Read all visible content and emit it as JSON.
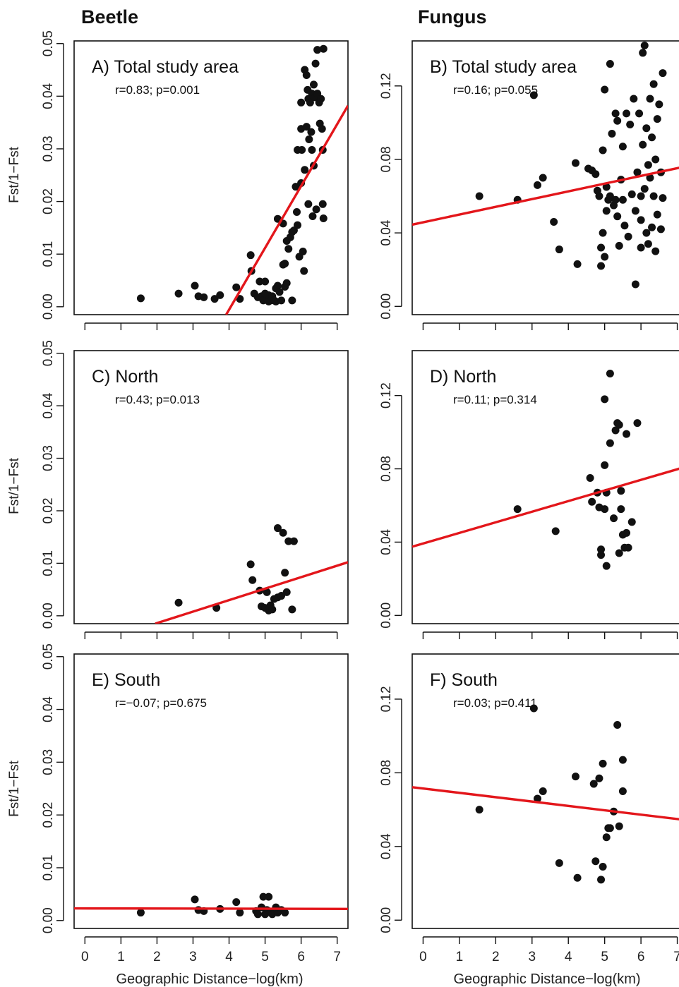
{
  "column_titles": {
    "beetle": "Beetle",
    "fungus": "Fungus"
  },
  "y_axis_label": "Fst/1−Fst",
  "x_axis_label": "Geographic Distance−log(km)",
  "colors": {
    "fit_line": "#e3161b",
    "points": "#111111"
  },
  "chart_data": [
    {
      "id": "A",
      "type": "scatter",
      "title": "A) Total study area",
      "annotation": "r=0.83; p=0.001",
      "xlim": [
        -0.3,
        7.3
      ],
      "ylim": [
        -0.0015,
        0.0505
      ],
      "yticks": [
        "0.00",
        "0.01",
        "0.02",
        "0.03",
        "0.04",
        "0.05"
      ],
      "xticks": [
        0,
        1,
        2,
        3,
        4,
        5,
        6,
        7
      ],
      "fit": {
        "x1": 3.92,
        "y1": -0.0015,
        "x2": 7.3,
        "y2": 0.0382
      },
      "points": [
        [
          1.55,
          0.0016
        ],
        [
          2.6,
          0.0025
        ],
        [
          3.05,
          0.004
        ],
        [
          3.15,
          0.002
        ],
        [
          3.3,
          0.0018
        ],
        [
          3.6,
          0.0015
        ],
        [
          3.75,
          0.0022
        ],
        [
          4.2,
          0.0037
        ],
        [
          4.3,
          0.0015
        ],
        [
          4.6,
          0.0098
        ],
        [
          4.62,
          0.0068
        ],
        [
          4.7,
          0.0025
        ],
        [
          4.8,
          0.0018
        ],
        [
          4.85,
          0.0048
        ],
        [
          4.9,
          0.002
        ],
        [
          4.95,
          0.0012
        ],
        [
          5.0,
          0.0048
        ],
        [
          5.0,
          0.0025
        ],
        [
          5.05,
          0.0015
        ],
        [
          5.1,
          0.0022
        ],
        [
          5.1,
          0.001
        ],
        [
          5.15,
          0.0012
        ],
        [
          5.2,
          0.002
        ],
        [
          5.25,
          0.0012
        ],
        [
          5.3,
          0.0035
        ],
        [
          5.3,
          0.001
        ],
        [
          5.35,
          0.0167
        ],
        [
          5.35,
          0.004
        ],
        [
          5.4,
          0.0028
        ],
        [
          5.45,
          0.0012
        ],
        [
          5.5,
          0.0158
        ],
        [
          5.5,
          0.008
        ],
        [
          5.55,
          0.0082
        ],
        [
          5.55,
          0.0038
        ],
        [
          5.6,
          0.0045
        ],
        [
          5.6,
          0.0125
        ],
        [
          5.65,
          0.011
        ],
        [
          5.7,
          0.0132
        ],
        [
          5.75,
          0.0012
        ],
        [
          5.75,
          0.0142
        ],
        [
          5.8,
          0.0145
        ],
        [
          5.85,
          0.0228
        ],
        [
          5.88,
          0.018
        ],
        [
          5.9,
          0.0155
        ],
        [
          5.9,
          0.0298
        ],
        [
          5.95,
          0.0095
        ],
        [
          6.0,
          0.0338
        ],
        [
          6.0,
          0.0388
        ],
        [
          6.0,
          0.0235
        ],
        [
          6.02,
          0.0298
        ],
        [
          6.05,
          0.0105
        ],
        [
          6.08,
          0.0068
        ],
        [
          6.1,
          0.045
        ],
        [
          6.1,
          0.026
        ],
        [
          6.15,
          0.044
        ],
        [
          6.15,
          0.0342
        ],
        [
          6.18,
          0.0412
        ],
        [
          6.2,
          0.0395
        ],
        [
          6.2,
          0.0195
        ],
        [
          6.22,
          0.0318
        ],
        [
          6.25,
          0.0388
        ],
        [
          6.28,
          0.0332
        ],
        [
          6.3,
          0.0405
        ],
        [
          6.3,
          0.0298
        ],
        [
          6.32,
          0.0172
        ],
        [
          6.35,
          0.0268
        ],
        [
          6.35,
          0.0422
        ],
        [
          6.38,
          0.0398
        ],
        [
          6.4,
          0.0462
        ],
        [
          6.42,
          0.0185
        ],
        [
          6.45,
          0.0405
        ],
        [
          6.45,
          0.0488
        ],
        [
          6.5,
          0.0388
        ],
        [
          6.52,
          0.0348
        ],
        [
          6.55,
          0.0395
        ],
        [
          6.58,
          0.0338
        ],
        [
          6.6,
          0.0195
        ],
        [
          6.6,
          0.0298
        ],
        [
          6.62,
          0.049
        ],
        [
          6.62,
          0.0168
        ]
      ]
    },
    {
      "id": "B",
      "type": "scatter",
      "title": "B) Total study area",
      "annotation": "r=0.16; p=0.055",
      "xlim": [
        -0.3,
        7.3
      ],
      "ylim": [
        -0.0045,
        0.1445
      ],
      "yticks": [
        "0.00",
        "0.04",
        "0.08",
        "0.12"
      ],
      "ytick_values": [
        0,
        0.04,
        0.08,
        0.12
      ],
      "xticks": [
        0,
        1,
        2,
        3,
        4,
        5,
        6,
        7
      ],
      "fit": {
        "x1": -0.3,
        "y1": 0.0445,
        "x2": 7.3,
        "y2": 0.0765
      },
      "points": [
        [
          1.55,
          0.06
        ],
        [
          2.6,
          0.058
        ],
        [
          3.05,
          0.115
        ],
        [
          3.15,
          0.066
        ],
        [
          3.3,
          0.07
        ],
        [
          3.6,
          0.046
        ],
        [
          3.75,
          0.031
        ],
        [
          4.2,
          0.078
        ],
        [
          4.25,
          0.023
        ],
        [
          4.55,
          0.075
        ],
        [
          4.65,
          0.074
        ],
        [
          4.75,
          0.072
        ],
        [
          4.8,
          0.063
        ],
        [
          4.85,
          0.06
        ],
        [
          4.9,
          0.032
        ],
        [
          4.9,
          0.022
        ],
        [
          4.95,
          0.085
        ],
        [
          4.95,
          0.04
        ],
        [
          5.0,
          0.027
        ],
        [
          5.0,
          0.118
        ],
        [
          5.05,
          0.065
        ],
        [
          5.05,
          0.052
        ],
        [
          5.1,
          0.058
        ],
        [
          5.15,
          0.132
        ],
        [
          5.15,
          0.06
        ],
        [
          5.2,
          0.094
        ],
        [
          5.25,
          0.055
        ],
        [
          5.3,
          0.105
        ],
        [
          5.3,
          0.058
        ],
        [
          5.35,
          0.101
        ],
        [
          5.35,
          0.049
        ],
        [
          5.4,
          0.033
        ],
        [
          5.45,
          0.069
        ],
        [
          5.5,
          0.087
        ],
        [
          5.5,
          0.058
        ],
        [
          5.55,
          0.044
        ],
        [
          5.6,
          0.105
        ],
        [
          5.65,
          0.038
        ],
        [
          5.7,
          0.099
        ],
        [
          5.75,
          0.061
        ],
        [
          5.8,
          0.113
        ],
        [
          5.85,
          0.012
        ],
        [
          5.85,
          0.052
        ],
        [
          5.9,
          0.073
        ],
        [
          5.95,
          0.105
        ],
        [
          6.0,
          0.06
        ],
        [
          6.0,
          0.047
        ],
        [
          6.0,
          0.032
        ],
        [
          6.05,
          0.138
        ],
        [
          6.05,
          0.088
        ],
        [
          6.1,
          0.142
        ],
        [
          6.1,
          0.064
        ],
        [
          6.15,
          0.097
        ],
        [
          6.15,
          0.04
        ],
        [
          6.2,
          0.077
        ],
        [
          6.2,
          0.034
        ],
        [
          6.25,
          0.113
        ],
        [
          6.25,
          0.07
        ],
        [
          6.3,
          0.092
        ],
        [
          6.3,
          0.043
        ],
        [
          6.35,
          0.121
        ],
        [
          6.35,
          0.06
        ],
        [
          6.4,
          0.08
        ],
        [
          6.4,
          0.03
        ],
        [
          6.45,
          0.102
        ],
        [
          6.45,
          0.05
        ],
        [
          6.5,
          0.11
        ],
        [
          6.55,
          0.042
        ],
        [
          6.55,
          0.073
        ],
        [
          6.6,
          0.127
        ],
        [
          6.6,
          0.059
        ]
      ]
    },
    {
      "id": "C",
      "type": "scatter",
      "title": "C) North",
      "annotation": "r=0.43; p=0.013",
      "xlim": [
        -0.3,
        7.3
      ],
      "ylim": [
        -0.0015,
        0.0505
      ],
      "yticks": [
        "0.00",
        "0.01",
        "0.02",
        "0.03",
        "0.04",
        "0.05"
      ],
      "xticks": [
        0,
        1,
        2,
        3,
        4,
        5,
        6,
        7
      ],
      "fit": {
        "x1": 1.95,
        "y1": -0.0015,
        "x2": 7.3,
        "y2": 0.0102
      },
      "points": [
        [
          2.6,
          0.0025
        ],
        [
          3.65,
          0.0015
        ],
        [
          4.6,
          0.0098
        ],
        [
          4.65,
          0.0068
        ],
        [
          4.85,
          0.0048
        ],
        [
          4.9,
          0.0018
        ],
        [
          5.0,
          0.0015
        ],
        [
          5.05,
          0.0045
        ],
        [
          5.1,
          0.001
        ],
        [
          5.15,
          0.002
        ],
        [
          5.2,
          0.0012
        ],
        [
          5.25,
          0.0032
        ],
        [
          5.35,
          0.0167
        ],
        [
          5.35,
          0.0035
        ],
        [
          5.45,
          0.0038
        ],
        [
          5.5,
          0.0158
        ],
        [
          5.55,
          0.0082
        ],
        [
          5.6,
          0.0045
        ],
        [
          5.65,
          0.0142
        ],
        [
          5.75,
          0.0012
        ],
        [
          5.8,
          0.0142
        ]
      ]
    },
    {
      "id": "D",
      "type": "scatter",
      "title": "D) North",
      "annotation": "r=0.11; p=0.314",
      "xlim": [
        -0.3,
        7.3
      ],
      "ylim": [
        -0.0045,
        0.1445
      ],
      "yticks": [
        "0.00",
        "0.04",
        "0.08",
        "0.12"
      ],
      "ytick_values": [
        0,
        0.04,
        0.08,
        0.12
      ],
      "xticks": [
        0,
        1,
        2,
        3,
        4,
        5,
        6,
        7
      ],
      "fit": {
        "x1": -0.3,
        "y1": 0.0375,
        "x2": 7.3,
        "y2": 0.0815
      },
      "points": [
        [
          2.6,
          0.058
        ],
        [
          3.65,
          0.046
        ],
        [
          4.6,
          0.075
        ],
        [
          4.65,
          0.062
        ],
        [
          4.8,
          0.067
        ],
        [
          4.85,
          0.059
        ],
        [
          4.9,
          0.033
        ],
        [
          4.9,
          0.036
        ],
        [
          5.0,
          0.118
        ],
        [
          5.0,
          0.082
        ],
        [
          5.0,
          0.058
        ],
        [
          5.05,
          0.027
        ],
        [
          5.05,
          0.067
        ],
        [
          5.15,
          0.132
        ],
        [
          5.15,
          0.094
        ],
        [
          5.25,
          0.053
        ],
        [
          5.3,
          0.101
        ],
        [
          5.35,
          0.105
        ],
        [
          5.4,
          0.104
        ],
        [
          5.4,
          0.034
        ],
        [
          5.45,
          0.058
        ],
        [
          5.45,
          0.068
        ],
        [
          5.5,
          0.044
        ],
        [
          5.55,
          0.037
        ],
        [
          5.6,
          0.099
        ],
        [
          5.6,
          0.045
        ],
        [
          5.65,
          0.037
        ],
        [
          5.75,
          0.051
        ],
        [
          5.9,
          0.105
        ]
      ]
    },
    {
      "id": "E",
      "type": "scatter",
      "title": "E) South",
      "annotation": "r=−0.07; p=0.675",
      "xlim": [
        -0.3,
        7.3
      ],
      "ylim": [
        -0.0015,
        0.0505
      ],
      "yticks": [
        "0.00",
        "0.01",
        "0.02",
        "0.03",
        "0.04",
        "0.05"
      ],
      "xticks": [
        0,
        1,
        2,
        3,
        4,
        5,
        6,
        7
      ],
      "fit": {
        "x1": -0.3,
        "y1": 0.0023,
        "x2": 7.3,
        "y2": 0.0022
      },
      "points": [
        [
          1.55,
          0.0015
        ],
        [
          3.05,
          0.004
        ],
        [
          3.15,
          0.002
        ],
        [
          3.3,
          0.0018
        ],
        [
          3.75,
          0.0022
        ],
        [
          4.2,
          0.0035
        ],
        [
          4.3,
          0.0015
        ],
        [
          4.75,
          0.0018
        ],
        [
          4.8,
          0.0012
        ],
        [
          4.9,
          0.0025
        ],
        [
          4.95,
          0.0045
        ],
        [
          5.0,
          0.0012
        ],
        [
          5.05,
          0.002
        ],
        [
          5.1,
          0.0045
        ],
        [
          5.15,
          0.0015
        ],
        [
          5.2,
          0.0012
        ],
        [
          5.3,
          0.0025
        ],
        [
          5.35,
          0.0015
        ],
        [
          5.45,
          0.002
        ],
        [
          5.55,
          0.0015
        ]
      ]
    },
    {
      "id": "F",
      "type": "scatter",
      "title": "F) South",
      "annotation": "r=0.03; p=0.411",
      "xlim": [
        -0.3,
        7.3
      ],
      "ylim": [
        -0.0045,
        0.1445
      ],
      "yticks": [
        "0.00",
        "0.04",
        "0.08",
        "0.12"
      ],
      "ytick_values": [
        0,
        0.04,
        0.08,
        0.12
      ],
      "xticks": [
        0,
        1,
        2,
        3,
        4,
        5,
        6,
        7
      ],
      "fit": {
        "x1": -0.3,
        "y1": 0.0722,
        "x2": 7.3,
        "y2": 0.0542
      },
      "points": [
        [
          1.55,
          0.06
        ],
        [
          3.05,
          0.115
        ],
        [
          3.15,
          0.066
        ],
        [
          3.3,
          0.07
        ],
        [
          3.75,
          0.031
        ],
        [
          4.2,
          0.078
        ],
        [
          4.25,
          0.023
        ],
        [
          4.7,
          0.074
        ],
        [
          4.75,
          0.032
        ],
        [
          4.85,
          0.077
        ],
        [
          4.9,
          0.022
        ],
        [
          4.95,
          0.085
        ],
        [
          4.95,
          0.029
        ],
        [
          5.05,
          0.045
        ],
        [
          5.1,
          0.05
        ],
        [
          5.15,
          0.05
        ],
        [
          5.25,
          0.059
        ],
        [
          5.35,
          0.106
        ],
        [
          5.4,
          0.051
        ],
        [
          5.5,
          0.087
        ],
        [
          5.5,
          0.07
        ]
      ]
    }
  ]
}
